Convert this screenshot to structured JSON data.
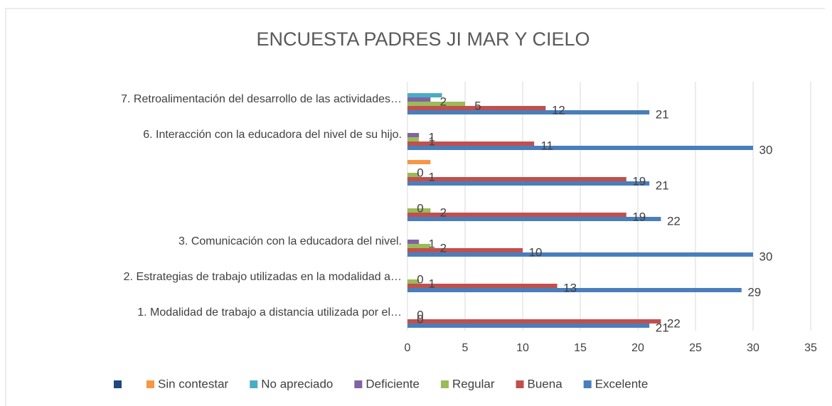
{
  "chart_data": {
    "type": "bar",
    "orientation": "horizontal",
    "title": "ENCUESTA PADRES JI MAR Y CIELO",
    "categories": [
      "1.   Modalidad de trabajo a distancia utilizada por el…",
      "2.   Estrategias de trabajo utilizadas en la modalidad a…",
      "3.   Comunicación con la educadora del nivel.",
      null,
      null,
      "6.   Interacción con la educadora del nivel de su hijo.",
      "7.  Retroalimentación del desarrollo de las actividades…"
    ],
    "series": [
      {
        "name": "Excelente",
        "color": "#4a7ebb",
        "labels": true,
        "values": [
          21,
          29,
          30,
          22,
          21,
          30,
          21
        ]
      },
      {
        "name": "Buena",
        "color": "#c0504d",
        "labels": true,
        "values": [
          22,
          13,
          10,
          19,
          19,
          11,
          12
        ]
      },
      {
        "name": "Regular",
        "color": "#9bbb59",
        "labels": true,
        "values": [
          0,
          1,
          2,
          2,
          1,
          1,
          5
        ]
      },
      {
        "name": "Deficiente",
        "color": "#8064a2",
        "labels": true,
        "values": [
          0,
          0,
          1,
          0,
          0,
          1,
          2
        ]
      },
      {
        "name": "No apreciado",
        "color": "#4bacc6",
        "labels": false,
        "values": [
          null,
          null,
          null,
          null,
          null,
          null,
          3
        ]
      },
      {
        "name": "Sin contestar",
        "color": "#f79646",
        "labels": false,
        "values": [
          null,
          null,
          null,
          null,
          2,
          null,
          null
        ]
      },
      {
        "name": null,
        "color": "#1f497d",
        "labels": false,
        "values": [
          null,
          null,
          null,
          null,
          null,
          null,
          null
        ]
      }
    ],
    "xlim": [
      0,
      35
    ],
    "xticks": [
      0,
      5,
      10,
      15,
      20,
      25,
      30,
      35
    ],
    "grid": true,
    "legend": "bottom"
  }
}
